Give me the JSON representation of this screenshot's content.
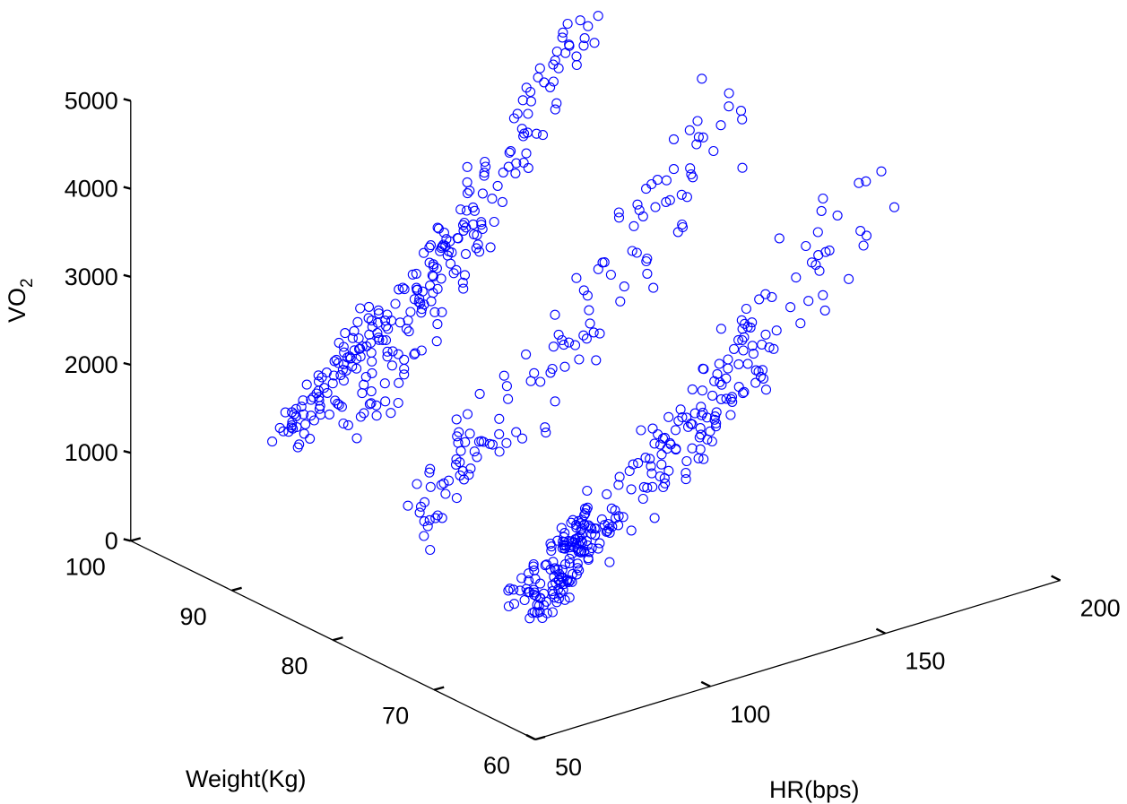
{
  "chart_data": {
    "type": "scatter",
    "projection": "3d",
    "title": "",
    "xlabel": "HR(bps)",
    "ylabel": "Weight(Kg)",
    "zlabel_main": "VO",
    "zlabel_sub": "2",
    "xlim": [
      50,
      200
    ],
    "ylim": [
      60,
      100
    ],
    "zlim": [
      0,
      5000
    ],
    "x_ticks": [
      "50",
      "100",
      "150",
      "200"
    ],
    "y_ticks": [
      "60",
      "70",
      "80",
      "90",
      "100"
    ],
    "z_ticks": [
      "0",
      "1000",
      "2000",
      "3000",
      "4000",
      "5000"
    ],
    "marker": "circle",
    "marker_color": "#0000ff",
    "grid": false,
    "legend": false,
    "clusters": [
      {
        "hr": [
          88,
          115
        ],
        "weight": [
          96,
          99
        ],
        "vo2": [
          800,
          2000
        ],
        "n": 90
      },
      {
        "hr": [
          92,
          132
        ],
        "weight": [
          91,
          95
        ],
        "vo2": [
          1200,
          3200
        ],
        "n": 90
      },
      {
        "hr": [
          110,
          160
        ],
        "weight": [
          91,
          94
        ],
        "vo2": [
          2400,
          5200
        ],
        "n": 90
      },
      {
        "hr": [
          88,
          105
        ],
        "weight": [
          83,
          87
        ],
        "vo2": [
          500,
          1500
        ],
        "n": 40
      },
      {
        "hr": [
          100,
          170
        ],
        "weight": [
          80,
          84
        ],
        "vo2": [
          1400,
          4600
        ],
        "n": 90
      },
      {
        "hr": [
          82,
          102
        ],
        "weight": [
          70,
          74
        ],
        "vo2": [
          400,
          1200
        ],
        "n": 140
      },
      {
        "hr": [
          100,
          150
        ],
        "weight": [
          70,
          74
        ],
        "vo2": [
          900,
          2600
        ],
        "n": 110
      },
      {
        "hr": [
          120,
          175
        ],
        "weight": [
          68,
          73
        ],
        "vo2": [
          1800,
          4200
        ],
        "n": 60
      }
    ]
  }
}
